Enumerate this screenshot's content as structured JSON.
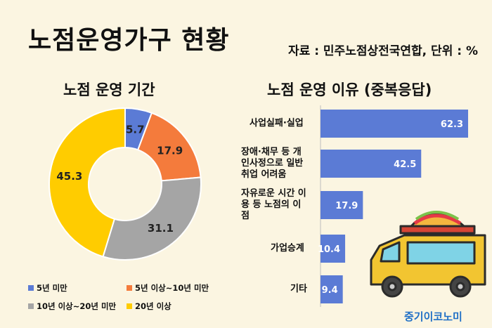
{
  "header": {
    "title": "노점운영가구 현황",
    "source": "자료 : 민주노점상전국연합, 단위 : %"
  },
  "chart_data": [
    {
      "type": "pie",
      "title": "노점 운영 기간",
      "labels": [
        "5년 미만",
        "5년 이상~10년 미만",
        "10년 이상~20년 미만",
        "20년 이상"
      ],
      "values": [
        5.7,
        17.9,
        31.1,
        45.3
      ],
      "colors": [
        "#5b7bd5",
        "#f47b3c",
        "#a5a5a5",
        "#ffcc00"
      ],
      "legend_position": "bottom"
    },
    {
      "type": "bar",
      "orientation": "horizontal",
      "title": "노점 운영 이유 (중복응답)",
      "categories": [
        "사업실패·실업",
        "장애·채무 등 개인사정으로 일반 취업 어려움",
        "자유로운 시간 이용 등 노점의 이점",
        "가업승계",
        "기타"
      ],
      "category_lines": [
        [
          "사업실패·실업"
        ],
        [
          "장애·채무 등 개",
          "인사정으로 일반",
          "취업 어려움"
        ],
        [
          "자유로운 시간 이",
          "용 등 노점의 이",
          "점"
        ],
        [
          "가업승계"
        ],
        [
          "기타"
        ]
      ],
      "values": [
        62.3,
        42.5,
        17.9,
        10.4,
        9.4
      ],
      "color": "#5b7bd5"
    }
  ],
  "watermark": "중기이코노미",
  "icons": {
    "truck": "food-truck-icon"
  }
}
